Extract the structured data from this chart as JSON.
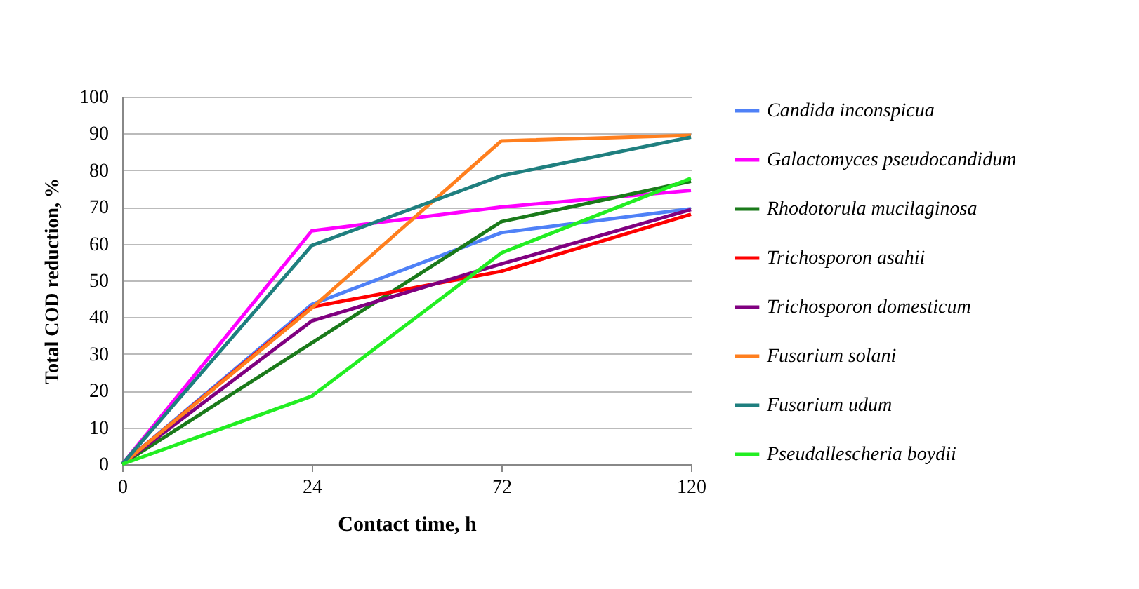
{
  "chart_data": {
    "type": "line",
    "xlabel": "Contact time, h",
    "ylabel": "Total COD reduction, %",
    "categories": [
      "0",
      "24",
      "72",
      "120"
    ],
    "ylim": [
      0,
      100
    ],
    "yticks": [
      0,
      10,
      20,
      30,
      40,
      50,
      60,
      70,
      80,
      90,
      100
    ],
    "grid": "y",
    "legend": "right",
    "marker": "none",
    "line_style": "solid",
    "series": [
      {
        "name": "Candida inconspicua",
        "color": "#4f81f7",
        "values": [
          0,
          43.5,
          63,
          69.5
        ]
      },
      {
        "name": "Galactomyces pseudocandidum",
        "color": "#ff00ff",
        "values": [
          0,
          63.5,
          70,
          74.5
        ]
      },
      {
        "name": "Rhodotorula mucilaginosa",
        "color": "#1a7a1a",
        "values": [
          0,
          33,
          66,
          77
        ]
      },
      {
        "name": "Trichosporon asahii",
        "color": "#ff0000",
        "values": [
          0,
          42.8,
          52.5,
          68
        ]
      },
      {
        "name": "Trichosporon domesticum",
        "color": "#800080",
        "values": [
          0,
          39,
          54.5,
          69.3
        ]
      },
      {
        "name": "Fusarium solani",
        "color": "#ff7f1e",
        "values": [
          0,
          42.5,
          88,
          89.5
        ]
      },
      {
        "name": "Fusarium udum",
        "color": "#1f7f7f",
        "values": [
          0,
          59.5,
          78.5,
          89
        ]
      },
      {
        "name": "Pseudallescheria boydii",
        "color": "#22ee22",
        "values": [
          0,
          18.5,
          57.5,
          77.8
        ]
      }
    ]
  }
}
